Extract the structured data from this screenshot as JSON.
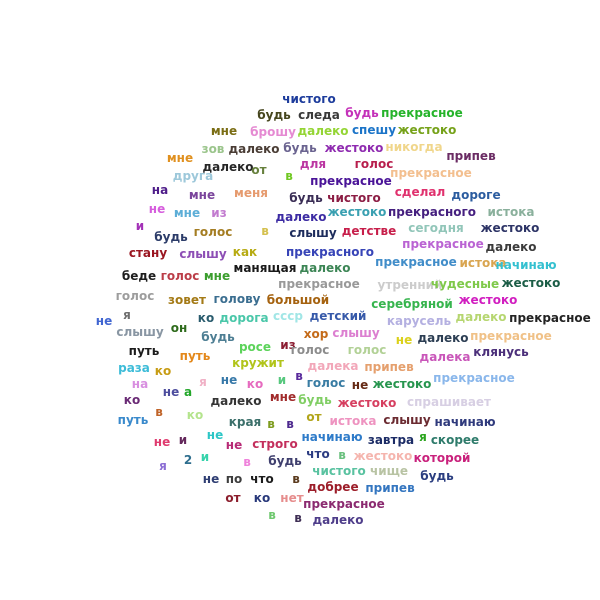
{
  "words": [
    {
      "text": "чистого",
      "color": "#1d3c9c"
    },
    {
      "text": "будь",
      "color": "#46461e"
    },
    {
      "text": "следа",
      "color": "#393939"
    },
    {
      "text": "будь",
      "color": "#c431b9"
    },
    {
      "text": "прекрасное",
      "color": "#25b32a"
    },
    {
      "text": "мне",
      "color": "#7a6d14"
    },
    {
      "text": "брошу",
      "color": "#e58ad2"
    },
    {
      "text": "далеко",
      "color": "#94d534"
    },
    {
      "text": "спешу",
      "color": "#1b74c8"
    },
    {
      "text": "жестоко",
      "color": "#76a21a"
    },
    {
      "text": "зов",
      "color": "#9bc58c"
    },
    {
      "text": "далеко",
      "color": "#4a3d35"
    },
    {
      "text": "будь",
      "color": "#6b6490"
    },
    {
      "text": "жестоко",
      "color": "#8f2bb0"
    },
    {
      "text": "никогда",
      "color": "#f0d68b"
    },
    {
      "text": "мне",
      "color": "#e0901f"
    },
    {
      "text": "далеко",
      "color": "#262626"
    },
    {
      "text": "от",
      "color": "#66803c"
    },
    {
      "text": "для",
      "color": "#bb36a2"
    },
    {
      "text": "голос",
      "color": "#b81e4d"
    },
    {
      "text": "припев",
      "color": "#6b2c64"
    },
    {
      "text": "прекрасное",
      "color": "#f3bf8f"
    },
    {
      "text": "друга",
      "color": "#9dc8da"
    },
    {
      "text": "в",
      "color": "#70c823"
    },
    {
      "text": "прекрасное",
      "color": "#4a1498"
    },
    {
      "text": "на",
      "color": "#4e1c89"
    },
    {
      "text": "мне",
      "color": "#7b459c"
    },
    {
      "text": "меня",
      "color": "#e69b6f"
    },
    {
      "text": "будь",
      "color": "#3a2d55"
    },
    {
      "text": "чистого",
      "color": "#8c1d44"
    },
    {
      "text": "сделал",
      "color": "#e0316e"
    },
    {
      "text": "дороге",
      "color": "#2b5c9f"
    },
    {
      "text": "не",
      "color": "#d65ddd"
    },
    {
      "text": "мне",
      "color": "#5daed7"
    },
    {
      "text": "из",
      "color": "#c27bcf"
    },
    {
      "text": "далеко",
      "color": "#3c2ba3"
    },
    {
      "text": "жестоко",
      "color": "#3aa0b1"
    },
    {
      "text": "прекрасного",
      "color": "#451f7f"
    },
    {
      "text": "истока",
      "color": "#8ab09c"
    },
    {
      "text": "и",
      "color": "#a331b7"
    },
    {
      "text": "будь",
      "color": "#2c3c69"
    },
    {
      "text": "голос",
      "color": "#a47d22"
    },
    {
      "text": "в",
      "color": "#d4c04f"
    },
    {
      "text": "слышу",
      "color": "#1d2c5c"
    },
    {
      "text": "детстве",
      "color": "#c71e4a"
    },
    {
      "text": "сегодня",
      "color": "#92c6b9"
    },
    {
      "text": "жестоко",
      "color": "#2d3466"
    },
    {
      "text": "прекрасное",
      "color": "#ba64d3"
    },
    {
      "text": "далеко",
      "color": "#3b3b3b"
    },
    {
      "text": "стану",
      "color": "#9a1621"
    },
    {
      "text": "слышу",
      "color": "#8d4fb5"
    },
    {
      "text": "как",
      "color": "#b7ab13"
    },
    {
      "text": "прекрасного",
      "color": "#3744b7"
    },
    {
      "text": "прекрасное",
      "color": "#418dc9"
    },
    {
      "text": "истока",
      "color": "#d9a550"
    },
    {
      "text": "начинаю",
      "color": "#34c0d0"
    },
    {
      "text": "беде",
      "color": "#1e1e1e"
    },
    {
      "text": "голос",
      "color": "#bb3d48"
    },
    {
      "text": "мне",
      "color": "#3b9e2e"
    },
    {
      "text": "манящая",
      "color": "#191919"
    },
    {
      "text": "далеко",
      "color": "#3c8555"
    },
    {
      "text": "прекрасное",
      "color": "#999999"
    },
    {
      "text": "утренний",
      "color": "#cccccc"
    },
    {
      "text": "чудесные",
      "color": "#7fc94a"
    },
    {
      "text": "жестоко",
      "color": "#1b5d46"
    },
    {
      "text": "голос",
      "color": "#9d9d9d"
    },
    {
      "text": "зовет",
      "color": "#a47a16"
    },
    {
      "text": "голову",
      "color": "#3b6e90"
    },
    {
      "text": "большой",
      "color": "#a5620f"
    },
    {
      "text": "серебряной",
      "color": "#37b54e"
    },
    {
      "text": "жестоко",
      "color": "#d11ec0"
    },
    {
      "text": "не",
      "color": "#4065d1"
    },
    {
      "text": "я",
      "color": "#6e6e6e"
    },
    {
      "text": "ко",
      "color": "#2a5c6e"
    },
    {
      "text": "дорога",
      "color": "#4ac7a9"
    },
    {
      "text": "ссср",
      "color": "#a1e6e6"
    },
    {
      "text": "детский",
      "color": "#3659a9"
    },
    {
      "text": "карусель",
      "color": "#b4b0e1"
    },
    {
      "text": "далеко",
      "color": "#b6d670"
    },
    {
      "text": "прекрасное",
      "color": "#232323"
    },
    {
      "text": "слышу",
      "color": "#8996a3"
    },
    {
      "text": "он",
      "color": "#2e6b1c"
    },
    {
      "text": "будь",
      "color": "#4d7e93"
    },
    {
      "text": "хор",
      "color": "#c46b1a"
    },
    {
      "text": "слышу",
      "color": "#dc7fd0"
    },
    {
      "text": "не",
      "color": "#dbd11b"
    },
    {
      "text": "далеко",
      "color": "#2c3e53"
    },
    {
      "text": "прекрасное",
      "color": "#f0c187"
    },
    {
      "text": "путь",
      "color": "#1c1c1c"
    },
    {
      "text": "путь",
      "color": "#e4881a"
    },
    {
      "text": "росе",
      "color": "#5cd35a"
    },
    {
      "text": "из",
      "color": "#8b1d32"
    },
    {
      "text": "голос",
      "color": "#8c8c8c"
    },
    {
      "text": "голос",
      "color": "#b2d196"
    },
    {
      "text": "далека",
      "color": "#c956b9"
    },
    {
      "text": "клянусь",
      "color": "#4b2f7a"
    },
    {
      "text": "раза",
      "color": "#3dbcd8"
    },
    {
      "text": "кружит",
      "color": "#b1c41a"
    },
    {
      "text": "далека",
      "color": "#f2a7b9"
    },
    {
      "text": "припев",
      "color": "#e5a06e"
    },
    {
      "text": "ко",
      "color": "#c79c14"
    },
    {
      "text": "в",
      "color": "#5a2b9c"
    },
    {
      "text": "на",
      "color": "#d88fe0"
    },
    {
      "text": "я",
      "color": "#f0b1c6"
    },
    {
      "text": "не",
      "color": "#3678a8"
    },
    {
      "text": "ко",
      "color": "#e66bbf"
    },
    {
      "text": "и",
      "color": "#57c87e"
    },
    {
      "text": "голос",
      "color": "#397ca3"
    },
    {
      "text": "не",
      "color": "#652a14"
    },
    {
      "text": "жестоко",
      "color": "#27954e"
    },
    {
      "text": "прекрасное",
      "color": "#8ab7eb"
    },
    {
      "text": "не",
      "color": "#4c4c9d"
    },
    {
      "text": "а",
      "color": "#23a72a"
    },
    {
      "text": "ко",
      "color": "#6a2a75"
    },
    {
      "text": "далеко",
      "color": "#353535"
    },
    {
      "text": "мне",
      "color": "#a12c2c"
    },
    {
      "text": "будь",
      "color": "#80ce64"
    },
    {
      "text": "жестоко",
      "color": "#d63f60"
    },
    {
      "text": "спрашивает",
      "color": "#d7cfe3"
    },
    {
      "text": "путь",
      "color": "#3a8acc"
    },
    {
      "text": "в",
      "color": "#c06429"
    },
    {
      "text": "ко",
      "color": "#b4e48d"
    },
    {
      "text": "от",
      "color": "#b2a51b"
    },
    {
      "text": "истока",
      "color": "#ee93c0"
    },
    {
      "text": "слышу",
      "color": "#6b2b31"
    },
    {
      "text": "начинаю",
      "color": "#2f3a7c"
    },
    {
      "text": "края",
      "color": "#3b6f6a"
    },
    {
      "text": "в",
      "color": "#7e9c1f"
    },
    {
      "text": "в",
      "color": "#4e2a8f"
    },
    {
      "text": "не",
      "color": "#2dc6c6"
    },
    {
      "text": "не",
      "color": "#df3a6e"
    },
    {
      "text": "и",
      "color": "#63275b"
    },
    {
      "text": "не",
      "color": "#b72a76"
    },
    {
      "text": "строго",
      "color": "#c32f5c"
    },
    {
      "text": "начинаю",
      "color": "#2e7bc9"
    },
    {
      "text": "завтра",
      "color": "#1c2c66"
    },
    {
      "text": "я",
      "color": "#2ba51e"
    },
    {
      "text": "скорее",
      "color": "#2e7b6b"
    },
    {
      "text": "я",
      "color": "#8c6ed4"
    },
    {
      "text": "2",
      "color": "#2e6e8e"
    },
    {
      "text": "и",
      "color": "#35d3ab"
    },
    {
      "text": "в",
      "color": "#ef82db"
    },
    {
      "text": "будь",
      "color": "#3f3f6e"
    },
    {
      "text": "что",
      "color": "#2c3c82"
    },
    {
      "text": "в",
      "color": "#6ac07e"
    },
    {
      "text": "жестоко",
      "color": "#f5b5ae"
    },
    {
      "text": "которой",
      "color": "#c9217c"
    },
    {
      "text": "чистого",
      "color": "#59c2a0"
    },
    {
      "text": "чище",
      "color": "#b8c3a3"
    },
    {
      "text": "будь",
      "color": "#2b3e80"
    },
    {
      "text": "не",
      "color": "#2e3d72"
    },
    {
      "text": "по",
      "color": "#3d3d3d"
    },
    {
      "text": "что",
      "color": "#1c1c1c"
    },
    {
      "text": "в",
      "color": "#5b3b1e"
    },
    {
      "text": "добрее",
      "color": "#9c1d29"
    },
    {
      "text": "припев",
      "color": "#3476c0"
    },
    {
      "text": "от",
      "color": "#8b1d2c"
    },
    {
      "text": "ко",
      "color": "#28387a"
    },
    {
      "text": "нет",
      "color": "#e68d8d"
    },
    {
      "text": "прекрасное",
      "color": "#8b2a70"
    },
    {
      "text": "в",
      "color": "#6fc86f"
    },
    {
      "text": "в",
      "color": "#3f2f55"
    },
    {
      "text": "далеко",
      "color": "#4e3d8a"
    }
  ]
}
